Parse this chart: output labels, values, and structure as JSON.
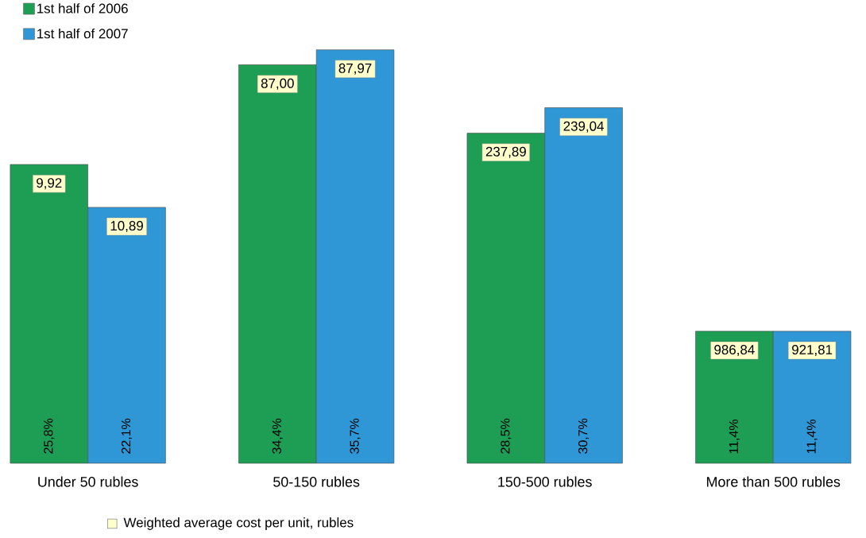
{
  "chart_data": {
    "type": "bar",
    "categories": [
      "Under 50 rubles",
      "50-150 rubles",
      "150-500 rubles",
      "More than 500 rubles"
    ],
    "series": [
      {
        "name": "1st half of 2006",
        "color": "#1e9e55",
        "values": [
          25.8,
          34.4,
          28.5,
          11.4
        ],
        "value_labels": [
          "25,8%",
          "34,4%",
          "28,5%",
          "11,4%"
        ]
      },
      {
        "name": "1st half of 2007",
        "color": "#2f97d6",
        "values": [
          22.1,
          35.7,
          30.7,
          11.4
        ],
        "value_labels": [
          "22,1%",
          "35,7%",
          "30,7%",
          "11,4%"
        ]
      }
    ],
    "ylim": [
      0,
      40
    ],
    "legend": "top left",
    "annotations": [
      "9,92",
      "87,00",
      "237,89",
      "986,84",
      "10,89",
      "87,97",
      "239,04",
      "921,81",
      "Weighted average cost per unit, rubles"
    ]
  }
}
